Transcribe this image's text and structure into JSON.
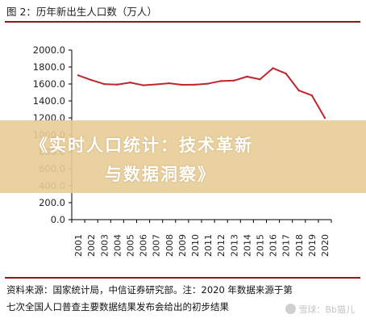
{
  "title": "图 2：历年新出生人口数（万人）",
  "banner": {
    "line1": "《实时人口统计：技术革新",
    "line2": "与数据洞察》"
  },
  "source": {
    "line1": "资料来源：国家统计局，中信证券研究部。注：2020 年数据来源于第",
    "line2": "七次全国人口普查主要数据结果发布会给出的初步结果"
  },
  "watermark": "雪球：Bb猫儿",
  "colors": {
    "line": "#c0262c",
    "rule": "#8b1a1a",
    "banner": "#e8cd96"
  },
  "chart_data": {
    "type": "line",
    "title": "历年新出生人口数（万人）",
    "xlabel": "",
    "ylabel": "",
    "ylim": [
      0,
      2000
    ],
    "yticks": [
      "0.0",
      "200.0",
      "400.0",
      "600.0",
      "800.0",
      "1000.0",
      "1200.0",
      "1400.0",
      "1600.0",
      "1800.0",
      "2000.0"
    ],
    "categories": [
      "2001",
      "2002",
      "2003",
      "2004",
      "2005",
      "2006",
      "2007",
      "2008",
      "2009",
      "2010",
      "2011",
      "2012",
      "2013",
      "2014",
      "2015",
      "2016",
      "2017",
      "2018",
      "2019",
      "2020"
    ],
    "values": [
      1702,
      1647,
      1599,
      1593,
      1617,
      1585,
      1595,
      1608,
      1591,
      1592,
      1604,
      1635,
      1640,
      1687,
      1655,
      1786,
      1723,
      1523,
      1465,
      1200
    ],
    "grid": false,
    "legend": "none"
  }
}
